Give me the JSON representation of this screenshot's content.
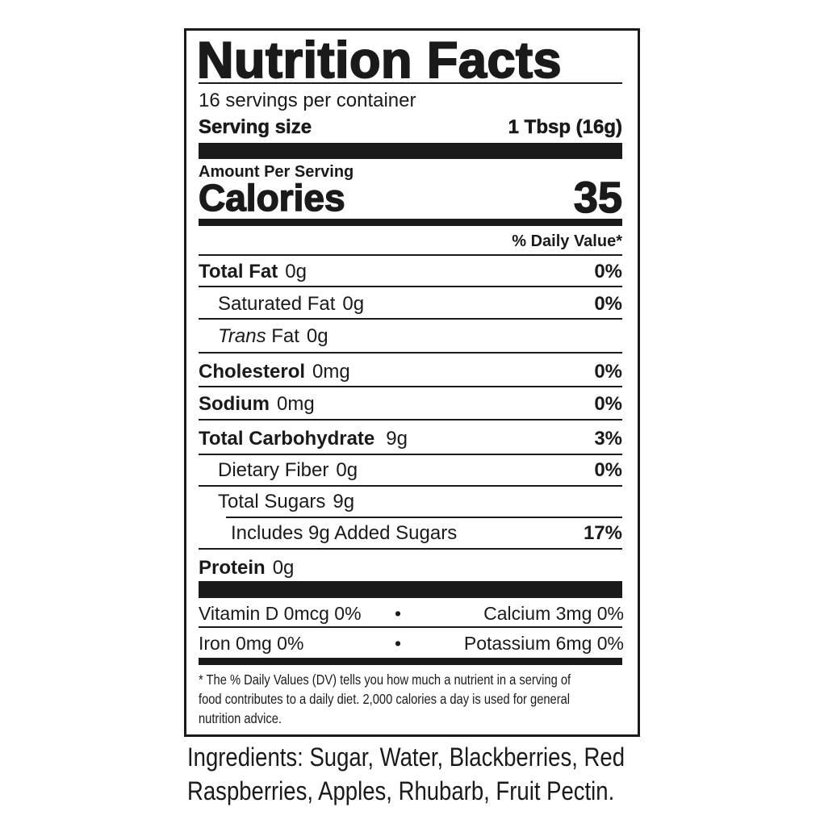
{
  "title": "Nutrition Facts",
  "servings_per_container": "16 servings per container",
  "serving_size": {
    "label": "Serving size",
    "value": "1 Tbsp (16g)"
  },
  "amount_per_serving": "Amount Per Serving",
  "calories": {
    "label": "Calories",
    "value": "35"
  },
  "daily_value_header": "% Daily Value*",
  "nutrients": [
    {
      "label": "Total Fat",
      "amount": "0g",
      "dv": "0%"
    },
    {
      "label": "Saturated Fat",
      "amount": "0g",
      "dv": "0%"
    },
    {
      "label": "Trans",
      "label_suffix": " Fat",
      "amount": "0g",
      "dv": ""
    },
    {
      "label": "Cholesterol",
      "amount": "0mg",
      "dv": "0%"
    },
    {
      "label": "Sodium",
      "amount": "0mg",
      "dv": "0%"
    },
    {
      "label": "Total Carbohydrate",
      "amount": "9g",
      "dv": "3%"
    },
    {
      "label": "Dietary Fiber",
      "amount": "0g",
      "dv": "0%"
    },
    {
      "label": "Total Sugars",
      "amount": "9g",
      "dv": ""
    },
    {
      "label": "Includes 9g Added Sugars",
      "amount": "",
      "dv": "17%"
    },
    {
      "label": "Protein",
      "amount": "0g",
      "dv": ""
    }
  ],
  "micronutrients": [
    {
      "left": "Vitamin D 0mcg 0%",
      "sep": "•",
      "right": "Calcium 3mg 0%"
    },
    {
      "left": "Iron 0mg 0%",
      "sep": "•",
      "right": "Potassium 6mg 0%"
    }
  ],
  "footnote_lines": [
    "* The % Daily Values (DV) tells you how much a nutrient in a serving of",
    "food contributes to a daily diet. 2,000 calories a day is used for general",
    "nutrition advice."
  ],
  "ingredients_lines": [
    "Ingredients: Sugar, Water, Blackberries, Red",
    "Raspberries, Apples, Rhubarb, Fruit Pectin."
  ]
}
